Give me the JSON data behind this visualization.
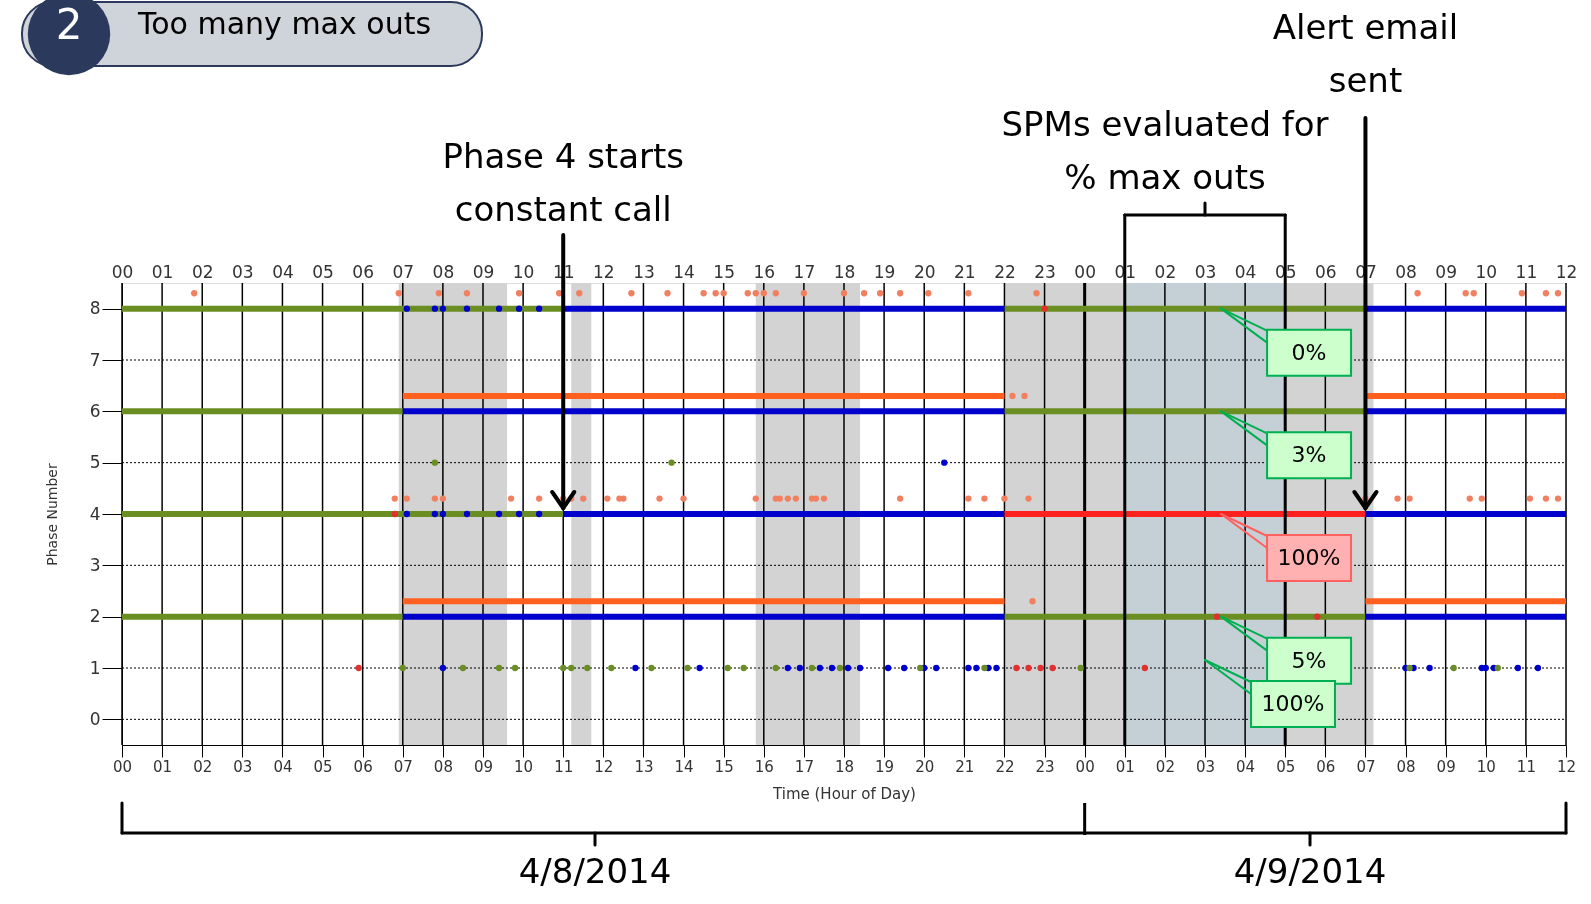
{
  "chart_data": {
    "type": "line",
    "title": "Too many max outs",
    "xlabel": "Time (Hour of Day)",
    "ylabel": "Phase Number",
    "xlim": [
      "2014-04-08T00:00",
      "2014-04-09T12:00"
    ],
    "ylim": [
      -0.5,
      8.5
    ],
    "x2lim": [
      "2014-04-08T00:00",
      "2014-04-09T12:00"
    ],
    "grid": true,
    "yticks": [
      0,
      1,
      2,
      3,
      4,
      5,
      6,
      7,
      8
    ],
    "xticks": [
      {
        "value": "2014-04-08T00:00",
        "label": "00"
      },
      {
        "value": "2014-04-08T01:00",
        "label": "01"
      },
      {
        "value": "2014-04-08T02:00",
        "label": "02"
      },
      {
        "value": "2014-04-08T03:00",
        "label": "03"
      },
      {
        "value": "2014-04-08T04:00",
        "label": "04"
      },
      {
        "value": "2014-04-08T05:00",
        "label": "05"
      },
      {
        "value": "2014-04-08T06:00",
        "label": "06"
      },
      {
        "value": "2014-04-08T07:00",
        "label": "07"
      },
      {
        "value": "2014-04-08T08:00",
        "label": "08"
      },
      {
        "value": "2014-04-08T09:00",
        "label": "09"
      },
      {
        "value": "2014-04-08T10:00",
        "label": "10"
      },
      {
        "value": "2014-04-08T11:00",
        "label": "11"
      },
      {
        "value": "2014-04-08T12:00",
        "label": "12"
      },
      {
        "value": "2014-04-08T13:00",
        "label": "13"
      },
      {
        "value": "2014-04-08T14:00",
        "label": "14"
      },
      {
        "value": "2014-04-08T15:00",
        "label": "15"
      },
      {
        "value": "2014-04-08T16:00",
        "label": "16"
      },
      {
        "value": "2014-04-08T17:00",
        "label": "17"
      },
      {
        "value": "2014-04-08T18:00",
        "label": "18"
      },
      {
        "value": "2014-04-08T19:00",
        "label": "19"
      },
      {
        "value": "2014-04-08T20:00",
        "label": "20"
      },
      {
        "value": "2014-04-08T21:00",
        "label": "21"
      },
      {
        "value": "2014-04-08T22:00",
        "label": "22"
      },
      {
        "value": "2014-04-08T23:00",
        "label": "23"
      },
      {
        "value": "2014-04-09T00:00",
        "label": "00"
      },
      {
        "value": "2014-04-09T01:00",
        "label": "01"
      },
      {
        "value": "2014-04-09T02:00",
        "label": "02"
      },
      {
        "value": "2014-04-09T03:00",
        "label": "03"
      },
      {
        "value": "2014-04-09T04:00",
        "label": "04"
      },
      {
        "value": "2014-04-09T05:00",
        "label": "05"
      },
      {
        "value": "2014-04-09T06:00",
        "label": "06"
      },
      {
        "value": "2014-04-09T07:00",
        "label": "07"
      },
      {
        "value": "2014-04-09T08:00",
        "label": "08"
      },
      {
        "value": "2014-04-09T09:00",
        "label": "09"
      },
      {
        "value": "2014-04-09T10:00",
        "label": "10"
      },
      {
        "value": "2014-04-09T11:00",
        "label": "11"
      },
      {
        "value": "2014-04-09T12:00",
        "label": "12"
      }
    ],
    "x2ticks": [
      {
        "value": "2014-04-08T00:00",
        "label": "00"
      },
      {
        "value": "2014-04-08T01:00",
        "label": "01"
      },
      {
        "value": "2014-04-08T02:00",
        "label": "02"
      },
      {
        "value": "2014-04-08T03:00",
        "label": "03"
      },
      {
        "value": "2014-04-08T04:00",
        "label": "04"
      },
      {
        "value": "2014-04-08T05:00",
        "label": "05"
      },
      {
        "value": "2014-04-08T06:00",
        "label": "06"
      },
      {
        "value": "2014-04-08T07:00",
        "label": "07"
      },
      {
        "value": "2014-04-08T08:00",
        "label": "08"
      },
      {
        "value": "2014-04-08T09:00",
        "label": "09"
      },
      {
        "value": "2014-04-08T10:00",
        "label": "10"
      },
      {
        "value": "2014-04-08T11:00",
        "label": "11"
      },
      {
        "value": "2014-04-08T12:00",
        "label": "12"
      },
      {
        "value": "2014-04-08T13:00",
        "label": "13"
      },
      {
        "value": "2014-04-08T14:00",
        "label": "14"
      },
      {
        "value": "2014-04-08T15:00",
        "label": "15"
      },
      {
        "value": "2014-04-08T16:00",
        "label": "16"
      },
      {
        "value": "2014-04-08T17:00",
        "label": "17"
      },
      {
        "value": "2014-04-08T18:00",
        "label": "18"
      },
      {
        "value": "2014-04-08T19:00",
        "label": "19"
      },
      {
        "value": "2014-04-08T20:00",
        "label": "20"
      },
      {
        "value": "2014-04-08T21:00",
        "label": "21"
      },
      {
        "value": "2014-04-08T22:00",
        "label": "22"
      },
      {
        "value": "2014-04-08T23:00",
        "label": "23"
      },
      {
        "value": "2014-04-09T00:00",
        "label": "00"
      },
      {
        "value": "2014-04-09T01:00",
        "label": "01"
      },
      {
        "value": "2014-04-09T02:00",
        "label": "02"
      },
      {
        "value": "2014-04-09T03:00",
        "label": "03"
      },
      {
        "value": "2014-04-09T04:00",
        "label": "04"
      },
      {
        "value": "2014-04-09T05:00",
        "label": "05"
      },
      {
        "value": "2014-04-09T06:00",
        "label": "06"
      },
      {
        "value": "2014-04-09T07:00",
        "label": "07"
      },
      {
        "value": "2014-04-09T08:00",
        "label": "08"
      },
      {
        "value": "2014-04-09T09:00",
        "label": "09"
      },
      {
        "value": "2014-04-09T10:00",
        "label": "10"
      },
      {
        "value": "2014-04-09T11:00",
        "label": "11"
      },
      {
        "value": "2014-04-09T12:00",
        "label": "12"
      }
    ],
    "bands": [
      {
        "axis": "x",
        "from": "2014-04-08T06:54",
        "to": "2014-04-08T09:36",
        "color": "#d3d3d3"
      },
      {
        "axis": "x",
        "from": "2014-04-08T11:12",
        "to": "2014-04-08T11:42",
        "color": "#d3d3d3"
      },
      {
        "axis": "x",
        "from": "2014-04-08T15:48",
        "to": "2014-04-08T18:24",
        "color": "#d3d3d3"
      },
      {
        "axis": "x",
        "from": "2014-04-08T22:00",
        "to": "2014-04-09T07:12",
        "color": "#d3d3d3"
      },
      {
        "axis": "x",
        "from": "2014-04-09T01:00",
        "to": "2014-04-09T05:00",
        "color": "#c5d0d6"
      }
    ],
    "ref_lines": [
      {
        "axis": "x",
        "value": "2014-04-09T00:00",
        "color": "#000000"
      }
    ],
    "series": [
      {
        "color": "#6b8e23",
        "x": [
          "2014-04-08T00:00",
          "2014-04-08T11:00"
        ],
        "values": [
          8,
          8
        ]
      },
      {
        "color": "#6b8e23",
        "x": [
          "2014-04-08T22:00",
          "2014-04-09T07:00"
        ],
        "values": [
          8,
          8
        ]
      },
      {
        "color": "#6b8e23",
        "x": [
          "2014-04-08T00:00",
          "2014-04-08T07:00"
        ],
        "values": [
          6,
          6
        ]
      },
      {
        "color": "#6b8e23",
        "x": [
          "2014-04-08T22:00",
          "2014-04-09T07:00"
        ],
        "values": [
          6,
          6
        ]
      },
      {
        "color": "#6b8e23",
        "x": [
          "2014-04-08T00:00",
          "2014-04-08T11:00"
        ],
        "values": [
          4,
          4
        ]
      },
      {
        "color": "#6b8e23",
        "x": [
          "2014-04-08T00:00",
          "2014-04-08T07:00"
        ],
        "values": [
          2,
          2
        ]
      },
      {
        "color": "#6b8e23",
        "x": [
          "2014-04-08T22:00",
          "2014-04-09T07:00"
        ],
        "values": [
          2,
          2
        ]
      },
      {
        "color": "#0000cc",
        "x": [
          "2014-04-08T11:00",
          "2014-04-08T22:00"
        ],
        "values": [
          8,
          8
        ]
      },
      {
        "color": "#0000cc",
        "x": [
          "2014-04-09T07:00",
          "2014-04-09T12:00"
        ],
        "values": [
          8,
          8
        ]
      },
      {
        "color": "#0000cc",
        "x": [
          "2014-04-08T07:00",
          "2014-04-08T22:00"
        ],
        "values": [
          6,
          6
        ]
      },
      {
        "color": "#0000cc",
        "x": [
          "2014-04-09T07:00",
          "2014-04-09T12:00"
        ],
        "values": [
          6,
          6
        ]
      },
      {
        "color": "#0000cc",
        "x": [
          "2014-04-08T11:00",
          "2014-04-08T22:00"
        ],
        "values": [
          4,
          4
        ]
      },
      {
        "color": "#0000cc",
        "x": [
          "2014-04-09T07:00",
          "2014-04-09T12:00"
        ],
        "values": [
          4,
          4
        ]
      },
      {
        "color": "#0000cc",
        "x": [
          "2014-04-08T07:00",
          "2014-04-08T22:00"
        ],
        "values": [
          2,
          2
        ]
      },
      {
        "color": "#0000cc",
        "x": [
          "2014-04-09T07:00",
          "2014-04-09T12:00"
        ],
        "values": [
          2,
          2
        ]
      },
      {
        "color": "#ff2020",
        "x": [
          "2014-04-08T22:00",
          "2014-04-09T07:00"
        ],
        "values": [
          4,
          4
        ]
      },
      {
        "color": "#ff6020",
        "x": [
          "2014-04-08T07:00",
          "2014-04-08T22:00"
        ],
        "values": [
          6.3,
          6.3
        ]
      },
      {
        "color": "#ff6020",
        "x": [
          "2014-04-09T07:00",
          "2014-04-09T12:00"
        ],
        "values": [
          6.3,
          6.3
        ]
      },
      {
        "color": "#ff6020",
        "x": [
          "2014-04-08T07:00",
          "2014-04-08T22:00"
        ],
        "values": [
          2.3,
          2.3
        ]
      },
      {
        "color": "#ff6020",
        "x": [
          "2014-04-09T07:00",
          "2014-04-09T12:00"
        ],
        "values": [
          2.3,
          2.3
        ]
      },
      {
        "type": "scatter",
        "color": "#0000cc",
        "x": [
          "2014-04-08T07:06",
          "2014-04-08T07:48",
          "2014-04-08T08:00",
          "2014-04-08T08:36",
          "2014-04-08T09:24",
          "2014-04-08T09:54",
          "2014-04-08T10:24",
          "2014-04-08T07:06",
          "2014-04-08T07:48",
          "2014-04-08T08:00",
          "2014-04-08T08:36",
          "2014-04-08T09:24",
          "2014-04-08T09:54",
          "2014-04-08T10:24",
          "2014-04-08T08:00",
          "2014-04-08T12:48",
          "2014-04-08T14:24",
          "2014-04-08T16:36",
          "2014-04-08T16:54",
          "2014-04-08T17:24",
          "2014-04-08T17:42",
          "2014-04-08T18:06",
          "2014-04-08T18:24",
          "2014-04-08T19:06",
          "2014-04-08T19:30",
          "2014-04-08T20:00",
          "2014-04-08T20:18",
          "2014-04-08T21:06",
          "2014-04-08T21:18",
          "2014-04-08T21:36",
          "2014-04-08T21:48",
          "2014-04-09T08:00",
          "2014-04-09T08:12",
          "2014-04-09T08:36",
          "2014-04-09T09:54",
          "2014-04-09T10:00",
          "2014-04-09T10:12",
          "2014-04-09T10:48",
          "2014-04-09T11:18",
          "2014-04-08T20:30"
        ],
        "values": [
          8,
          8,
          8,
          8,
          8,
          8,
          8,
          4,
          4,
          4,
          4,
          4,
          4,
          4,
          1,
          1,
          1,
          1,
          1,
          1,
          1,
          1,
          1,
          1,
          1,
          1,
          1,
          1,
          1,
          1,
          1,
          1,
          1,
          1,
          1,
          1,
          1,
          1,
          1,
          5
        ]
      },
      {
        "type": "scatter",
        "color": "#6b8e23",
        "x": [
          "2014-04-08T07:00",
          "2014-04-08T08:30",
          "2014-04-08T09:24",
          "2014-04-08T09:48",
          "2014-04-08T11:00",
          "2014-04-08T11:12",
          "2014-04-08T11:36",
          "2014-04-08T12:12",
          "2014-04-08T13:12",
          "2014-04-08T14:06",
          "2014-04-08T15:06",
          "2014-04-08T15:30",
          "2014-04-08T16:18",
          "2014-04-08T17:12",
          "2014-04-08T17:54",
          "2014-04-08T19:54",
          "2014-04-08T21:30",
          "2014-04-08T23:12",
          "2014-04-08T23:54",
          "2014-04-09T08:06",
          "2014-04-09T09:12",
          "2014-04-09T10:18",
          "2014-04-08T07:48",
          "2014-04-08T13:42"
        ],
        "values": [
          1,
          1,
          1,
          1,
          1,
          1,
          1,
          1,
          1,
          1,
          1,
          1,
          1,
          1,
          1,
          1,
          1,
          null,
          1,
          1,
          1,
          1,
          5,
          5
        ]
      },
      {
        "type": "scatter",
        "color": "#e03030",
        "x": [
          "2014-04-08T05:54",
          "2014-04-08T22:18",
          "2014-04-08T22:36",
          "2014-04-08T22:54",
          "2014-04-08T23:12",
          "2014-04-09T01:30",
          "2014-04-09T03:18",
          "2014-04-09T05:48",
          "2014-04-08T23:00",
          "2014-04-08T06:48"
        ],
        "values": [
          1,
          1,
          1,
          1,
          1,
          1,
          2,
          2,
          8,
          4
        ]
      },
      {
        "type": "scatter",
        "color": "#f08060",
        "x": [
          "2014-04-08T01:48",
          "2014-04-08T06:54",
          "2014-04-08T07:54",
          "2014-04-08T08:36",
          "2014-04-08T09:54",
          "2014-04-08T10:54",
          "2014-04-08T11:24",
          "2014-04-08T12:42",
          "2014-04-08T13:36",
          "2014-04-08T14:30",
          "2014-04-08T14:48",
          "2014-04-08T15:00",
          "2014-04-08T15:36",
          "2014-04-08T15:48",
          "2014-04-08T16:00",
          "2014-04-08T16:18",
          "2014-04-08T17:00",
          "2014-04-08T18:00",
          "2014-04-08T18:30",
          "2014-04-08T18:54",
          "2014-04-08T19:24",
          "2014-04-08T20:06",
          "2014-04-08T21:06",
          "2014-04-08T22:48",
          "2014-04-09T08:18",
          "2014-04-09T09:30",
          "2014-04-09T09:42",
          "2014-04-09T10:54",
          "2014-04-09T11:30",
          "2014-04-09T11:48",
          "2014-04-08T06:48",
          "2014-04-08T07:06",
          "2014-04-08T07:48",
          "2014-04-08T08:00",
          "2014-04-08T09:42",
          "2014-04-08T10:24",
          "2014-04-08T11:00",
          "2014-04-08T11:12",
          "2014-04-08T11:30",
          "2014-04-08T12:06",
          "2014-04-08T12:24",
          "2014-04-08T12:30",
          "2014-04-08T13:24",
          "2014-04-08T14:00",
          "2014-04-08T15:48",
          "2014-04-08T16:18",
          "2014-04-08T16:24",
          "2014-04-08T16:36",
          "2014-04-08T16:48",
          "2014-04-08T17:12",
          "2014-04-08T17:18",
          "2014-04-08T17:30",
          "2014-04-08T19:24",
          "2014-04-08T21:06",
          "2014-04-08T21:30",
          "2014-04-08T22:00",
          "2014-04-08T22:36",
          "2014-04-09T07:00",
          "2014-04-09T07:48",
          "2014-04-09T08:06",
          "2014-04-09T09:36",
          "2014-04-09T09:54",
          "2014-04-09T11:06",
          "2014-04-09T11:30",
          "2014-04-09T11:48",
          "2014-04-08T22:12",
          "2014-04-08T22:30",
          "2014-04-08T22:42"
        ],
        "values": [
          8.3,
          8.3,
          8.3,
          8.3,
          8.3,
          8.3,
          8.3,
          8.3,
          8.3,
          8.3,
          8.3,
          8.3,
          8.3,
          8.3,
          8.3,
          8.3,
          8.3,
          8.3,
          8.3,
          8.3,
          8.3,
          8.3,
          8.3,
          8.3,
          8.3,
          8.3,
          8.3,
          8.3,
          8.3,
          8.3,
          4.3,
          4.3,
          4.3,
          4.3,
          4.3,
          4.3,
          4.3,
          4.3,
          4.3,
          4.3,
          4.3,
          4.3,
          4.3,
          4.3,
          4.3,
          4.3,
          4.3,
          4.3,
          4.3,
          4.3,
          4.3,
          4.3,
          4.3,
          4.3,
          4.3,
          4.3,
          4.3,
          4.3,
          4.3,
          4.3,
          4.3,
          4.3,
          4.3,
          4.3,
          4.3,
          6.3,
          6.3,
          2.3
        ]
      }
    ],
    "annotations": [
      "2",
      {
        "text": "Phase 4 starts constant call",
        "x": "2014-04-08T11:00",
        "y": 4
      },
      {
        "text": "Alert email sent",
        "x": "2014-04-09T07:00",
        "y": 4
      },
      "SPMs evaluated for % max outs",
      {
        "text": "0%",
        "x": "2014-04-09T03:24",
        "y": 8
      },
      {
        "text": "3%",
        "x": "2014-04-09T03:24",
        "y": 6
      },
      {
        "text": "100%",
        "x": "2014-04-09T03:24",
        "y": 4
      },
      {
        "text": "5%",
        "x": "2014-04-09T03:24",
        "y": 2
      },
      "100%",
      "4/8/2014",
      "4/9/2014"
    ]
  }
}
